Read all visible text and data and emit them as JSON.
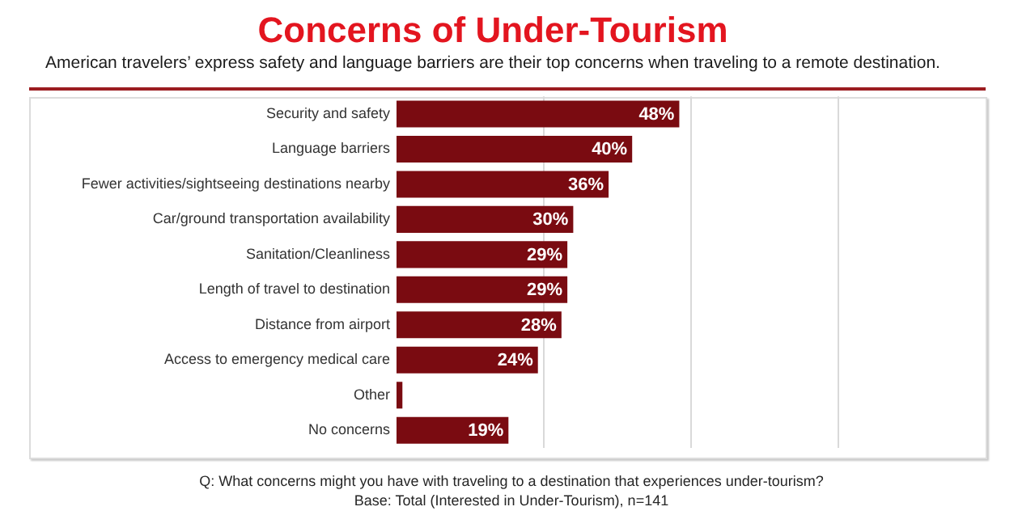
{
  "chart_data": {
    "type": "bar",
    "orientation": "horizontal",
    "title": "Concerns of Under-Tourism",
    "subtitle": "American travelers’ express safety and language barriers are their top concerns when traveling to a remote destination.",
    "categories": [
      "Security and safety",
      "Language barriers",
      "Fewer activities/sightseeing destinations nearby",
      "Car/ground transportation availability",
      "Sanitation/Cleanliness",
      "Length of travel to destination",
      "Distance from airport",
      "Access to emergency medical care",
      "Other",
      "No concerns"
    ],
    "values": [
      48,
      40,
      36,
      30,
      29,
      29,
      28,
      24,
      1,
      19
    ],
    "value_labels": [
      "48%",
      "40%",
      "36%",
      "30%",
      "29%",
      "29%",
      "28%",
      "24%",
      null,
      "19%"
    ],
    "color": "#7a0b11",
    "xlim": [
      0,
      100
    ],
    "xticks": [
      {
        "value": 25,
        "label": null
      },
      {
        "value": 50,
        "label": null
      },
      {
        "value": 75,
        "label": null
      }
    ],
    "grid": "x",
    "tick_labels": "y",
    "annotations": [
      "Q: What concerns might you have with traveling to a destination that experiences under-tourism?",
      "Base: Total (Interested in Under-Tourism), n=141"
    ]
  }
}
